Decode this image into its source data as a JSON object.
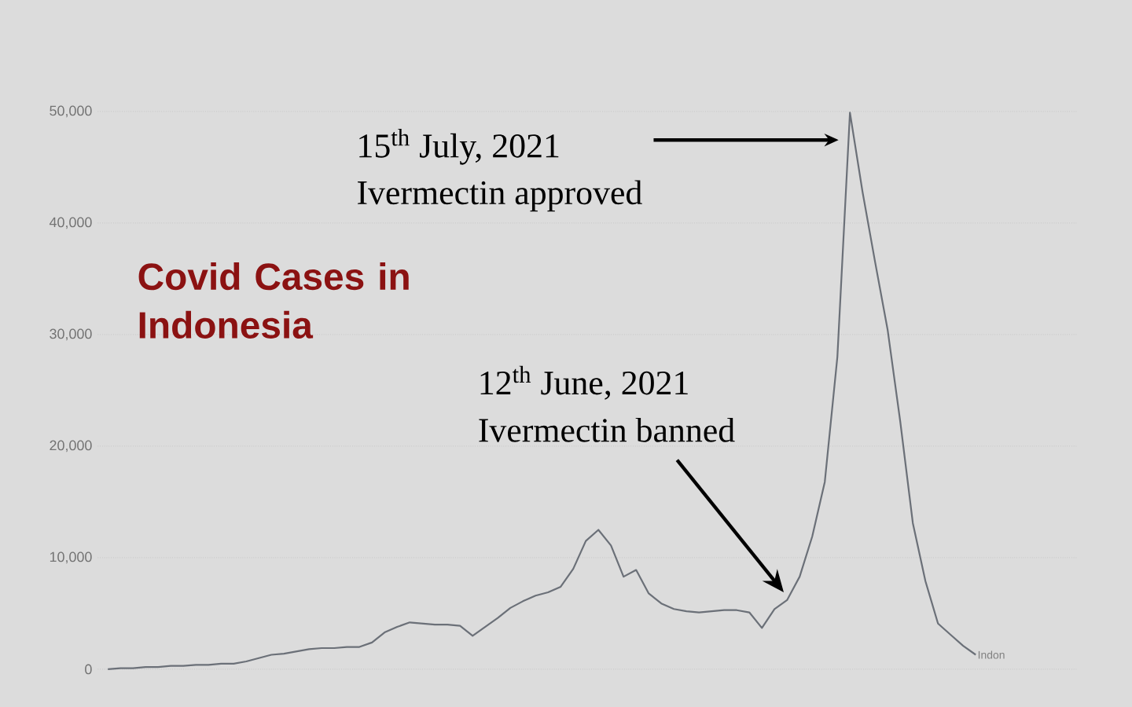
{
  "chart_data": {
    "type": "line",
    "title": "Covid Cases in Indonesia",
    "categories": [
      null,
      null,
      null,
      null,
      null,
      null,
      null,
      null,
      null,
      null,
      null,
      null,
      null,
      null,
      null,
      null,
      null,
      null,
      null,
      null,
      null,
      null,
      null,
      null,
      null,
      null,
      null,
      null,
      null,
      null,
      null,
      null,
      null,
      null,
      null,
      null,
      null,
      null,
      null,
      null,
      null,
      null,
      null,
      null,
      null,
      null,
      null,
      null,
      null,
      null,
      null,
      null,
      null,
      null,
      null,
      null,
      null,
      null,
      null,
      null,
      null,
      null,
      null,
      null,
      null,
      null,
      null,
      null,
      null,
      null
    ],
    "series": [
      {
        "name": "Indon",
        "color": "#6b7078",
        "values": [
          0,
          100,
          100,
          200,
          200,
          300,
          300,
          400,
          400,
          500,
          500,
          700,
          1000,
          1300,
          1400,
          1600,
          1800,
          1900,
          1900,
          2000,
          2000,
          2400,
          3300,
          3800,
          4200,
          4100,
          4000,
          4000,
          3900,
          3000,
          3800,
          4600,
          5500,
          6100,
          6600,
          6900,
          7400,
          9000,
          11500,
          12500,
          11100,
          8300,
          8900,
          6800,
          5900,
          5400,
          5200,
          5100,
          5200,
          5300,
          5300,
          5100,
          3700,
          5400,
          6200,
          8300,
          11900,
          16800,
          28000,
          49900,
          42800,
          36500,
          30400,
          22200,
          13100,
          7900,
          4100,
          3100,
          2100,
          1300
        ]
      }
    ],
    "ylim": [
      0,
      50000
    ],
    "yticks": [
      0,
      {
        "value": 10000,
        "label": "10,000"
      },
      {
        "value": 20000,
        "label": "20,000"
      },
      {
        "value": 30000,
        "label": "30,000"
      },
      {
        "value": 40000,
        "label": "40,000"
      },
      {
        "value": 50000,
        "label": "50,000"
      }
    ],
    "grid": "y",
    "annotations": [
      "15$^{th}$ July, 2021",
      "Ivermectin approved",
      "12$^{th}$ June, 2021",
      "Ivermectin banned"
    ]
  }
}
